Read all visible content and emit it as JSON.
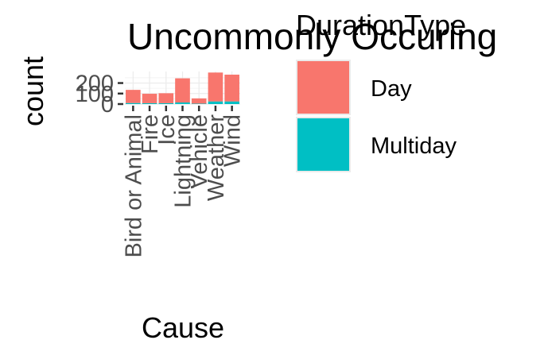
{
  "chart_data": {
    "type": "bar",
    "stacked": true,
    "title": "Uncommonly Occuring",
    "xlabel": "Cause",
    "ylabel": "count",
    "categories": [
      "Bird or Animal",
      "Fire",
      "Ice",
      "Lightning",
      "Vehicle",
      "Weather",
      "Wind"
    ],
    "series": [
      {
        "name": "Day",
        "color": "#F8766D",
        "values": [
          125,
          90,
          95,
          230,
          50,
          275,
          255
        ]
      },
      {
        "name": "Multiday",
        "color": "#00BFC4",
        "values": [
          10,
          8,
          8,
          15,
          4,
          25,
          25
        ]
      }
    ],
    "y_ticks": [
      "0",
      "100",
      "200"
    ],
    "ylim": [
      0,
      310
    ],
    "grid": true,
    "legend": {
      "title": "DurationType",
      "position": "right"
    }
  }
}
